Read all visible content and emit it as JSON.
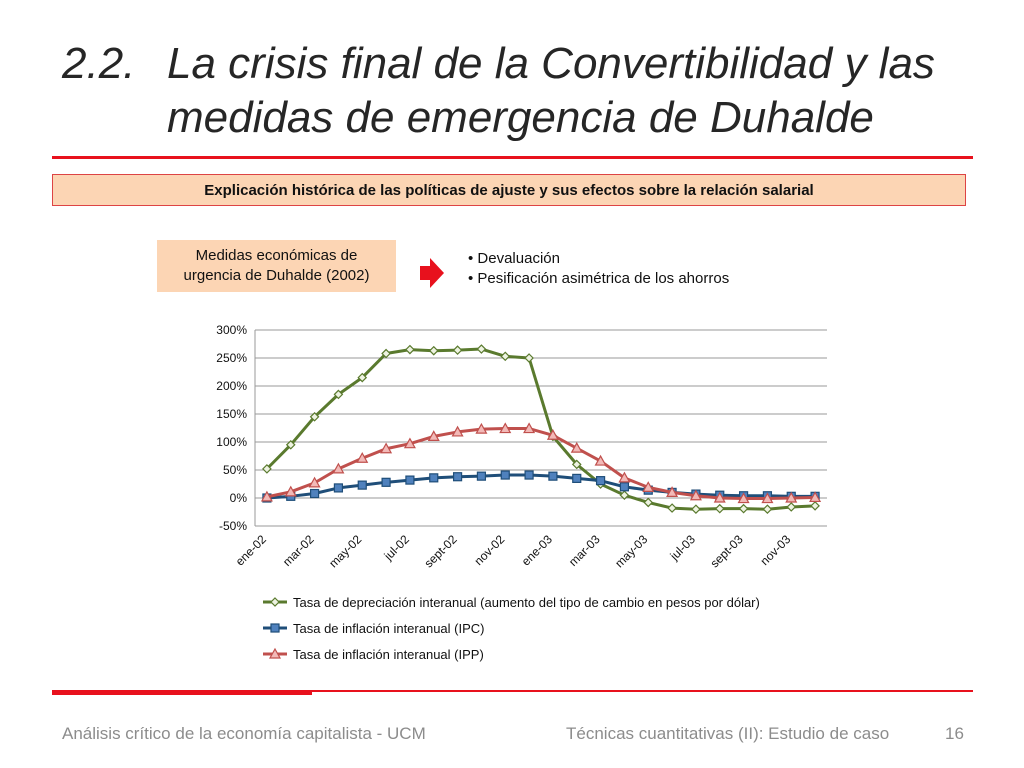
{
  "slide": {
    "number_prefix": "2.2.",
    "title_line1": "La crisis final de la Convertibilidad y las",
    "title_line2": "medidas de emergencia de Duhalde",
    "subtitle": "Explicación histórica de las políticas de ajuste y sus efectos sobre la relación salarial",
    "measures_line1": "Medidas económicas de",
    "measures_line2": "urgencia de Duhalde (2002)",
    "bullets": [
      "• Devaluación",
      "• Pesificación asimétrica de los ahorros"
    ],
    "footer_left": "Análisis crítico de la economía capitalista - UCM",
    "footer_center": "Técnicas cuantitativas (II): Estudio de caso",
    "page_number": "16",
    "accent_color": "#e8111d",
    "box_fill": "#fcd5b4"
  },
  "chart_data": {
    "type": "line",
    "title": "",
    "xlabel": "",
    "ylabel": "",
    "ylim": [
      -50,
      300
    ],
    "yticks": [
      -50,
      0,
      50,
      100,
      150,
      200,
      250,
      300
    ],
    "ytick_labels": [
      "-50%",
      "0%",
      "50%",
      "100%",
      "150%",
      "200%",
      "250%",
      "300%"
    ],
    "grid": true,
    "legend_position": "bottom",
    "x": [
      "ene-02",
      "feb-02",
      "mar-02",
      "abr-02",
      "may-02",
      "jun-02",
      "jul-02",
      "ago-02",
      "sept-02",
      "oct-02",
      "nov-02",
      "dic-02",
      "ene-03",
      "feb-03",
      "mar-03",
      "abr-03",
      "may-03",
      "jun-03",
      "jul-03",
      "ago-03",
      "sept-03",
      "oct-03",
      "nov-03",
      "dic-03"
    ],
    "x_tick_labels": [
      "ene-02",
      "mar-02",
      "may-02",
      "jul-02",
      "sept-02",
      "nov-02",
      "ene-03",
      "mar-03",
      "may-03",
      "jul-03",
      "sept-03",
      "nov-03"
    ],
    "series": [
      {
        "name": "Tasa de depreciación interanual (aumento del tipo de cambio en pesos por dólar)",
        "color": "#5a7a2e",
        "marker": "diamond",
        "values": [
          52,
          95,
          145,
          185,
          215,
          258,
          265,
          263,
          264,
          266,
          253,
          250,
          110,
          60,
          25,
          5,
          -8,
          -18,
          -20,
          -19,
          -19,
          -20,
          -16,
          -14
        ]
      },
      {
        "name": "Tasa de inflación interanual (IPC)",
        "color": "#1f4e79",
        "marker": "square",
        "values": [
          0,
          3,
          8,
          18,
          23,
          28,
          32,
          36,
          38,
          39,
          41,
          41,
          39,
          35,
          31,
          20,
          14,
          10,
          7,
          5,
          4,
          4,
          3,
          3
        ]
      },
      {
        "name": "Tasa de inflación interanual (IPP)",
        "color": "#c0504d",
        "marker": "triangle",
        "values": [
          2,
          11,
          27,
          52,
          71,
          88,
          97,
          110,
          118,
          123,
          124,
          124,
          112,
          89,
          66,
          36,
          19,
          10,
          4,
          0,
          -1,
          -1,
          0,
          1
        ]
      }
    ]
  }
}
